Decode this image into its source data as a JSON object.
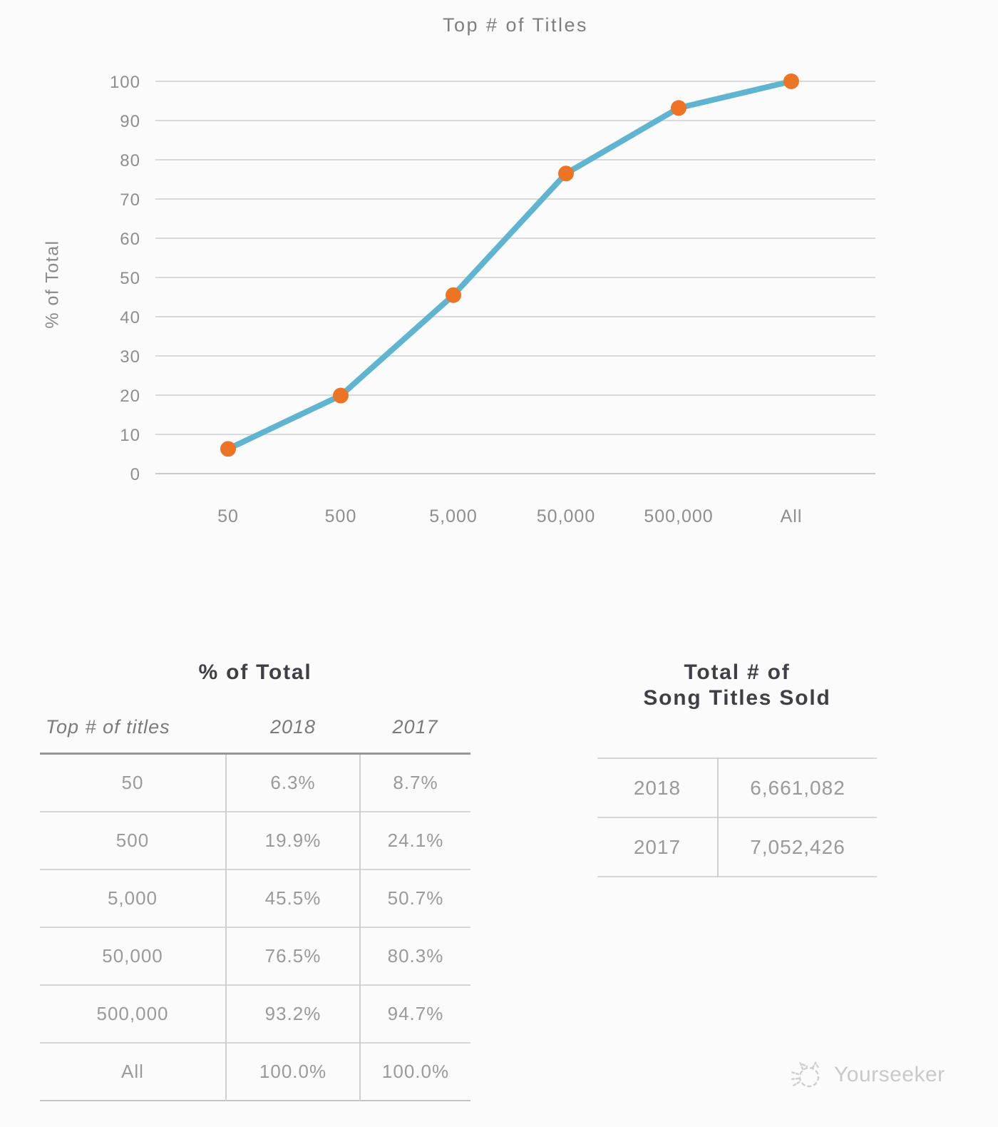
{
  "chart": {
    "title": "Top # of Titles",
    "y_axis_label": "% of Total"
  },
  "chart_data": {
    "type": "line",
    "title": "Top # of Titles",
    "xlabel": "Top # of titles",
    "ylabel": "% of Total",
    "categories": [
      "50",
      "500",
      "5,000",
      "50,000",
      "500,000",
      "All"
    ],
    "series": [
      {
        "name": "2018",
        "values": [
          6.3,
          19.9,
          45.5,
          76.5,
          93.2,
          100.0
        ]
      }
    ],
    "ylim": [
      0,
      100
    ],
    "yticks": [
      0,
      10,
      20,
      30,
      40,
      50,
      60,
      70,
      80,
      90,
      100
    ],
    "grid": true,
    "legend": "none",
    "line_color": "#5fb4cf",
    "marker_color": "#ee7425"
  },
  "left_table": {
    "title": "% of Total",
    "columns": [
      "Top # of titles",
      "2018",
      "2017"
    ],
    "rows": [
      [
        "50",
        "6.3%",
        "8.7%"
      ],
      [
        "500",
        "19.9%",
        "24.1%"
      ],
      [
        "5,000",
        "45.5%",
        "50.7%"
      ],
      [
        "50,000",
        "76.5%",
        "80.3%"
      ],
      [
        "500,000",
        "93.2%",
        "94.7%"
      ],
      [
        "All",
        "100.0%",
        "100.0%"
      ]
    ]
  },
  "right_table": {
    "title_line1": "Total # of",
    "title_line2": "Song Titles Sold",
    "rows": [
      [
        "2018",
        "6,661,082"
      ],
      [
        "2017",
        "7,052,426"
      ]
    ]
  },
  "watermark": {
    "text": "Yourseeker"
  }
}
